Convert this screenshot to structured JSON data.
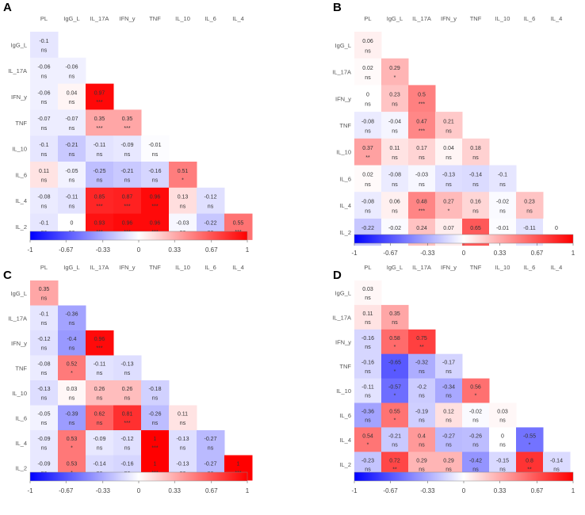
{
  "figure": {
    "color_scale": {
      "min": -1,
      "max": 1,
      "low_color": "#0000ff",
      "mid_color": "#ffffff",
      "high_color": "#ff0000"
    },
    "colorbar_ticks": [
      "-1",
      "-0.67",
      "-0.33",
      "0",
      "0.33",
      "0.67",
      "1"
    ]
  },
  "chart_data": [
    {
      "type": "heatmap",
      "panel_label": "A",
      "variables": [
        "PL",
        "IgG_L",
        "IL_17A",
        "IFN_y",
        "TNF",
        "IL_10",
        "IL_6",
        "IL_4",
        "IL_2"
      ],
      "values": [
        [
          "-0.1"
        ],
        [
          "-0.06",
          "-0.06"
        ],
        [
          "-0.06",
          "0.04",
          "0.97"
        ],
        [
          "-0.07",
          "-0.07",
          "0.35",
          "0.35"
        ],
        [
          "-0.1",
          "-0.21",
          "-0.11",
          "-0.09",
          "-0.01"
        ],
        [
          "0.11",
          "-0.05",
          "-0.25",
          "-0.21",
          "-0.16",
          "0.51"
        ],
        [
          "-0.08",
          "-0.11",
          "0.85",
          "0.87",
          "0.96",
          "0.13",
          "-0.12"
        ],
        [
          "-0.1",
          "0",
          "0.93",
          "0.96",
          "0.96",
          "-0.03",
          "-0.22",
          "0.55"
        ]
      ],
      "significance": [
        [
          "ns"
        ],
        [
          "ns",
          "ns"
        ],
        [
          "ns",
          "ns",
          "***"
        ],
        [
          "ns",
          "ns",
          "***",
          "***"
        ],
        [
          "ns",
          "ns",
          "ns",
          "ns",
          "ns"
        ],
        [
          "ns",
          "ns",
          "ns",
          "ns",
          "ns",
          "*"
        ],
        [
          "ns",
          "ns",
          "***",
          "***",
          "***",
          "ns",
          "ns"
        ],
        [
          "ns",
          "ns",
          "***",
          "***",
          "***",
          "ns",
          "ns",
          "***"
        ]
      ],
      "colorbar_ticks": [
        "-1",
        "-0.67",
        "-0.33",
        "0",
        "0.33",
        "0.67",
        "1"
      ]
    },
    {
      "type": "heatmap",
      "panel_label": "B",
      "variables": [
        "PL",
        "IgG_L",
        "IL_17A",
        "IFN_y",
        "TNF",
        "IL_10",
        "IL_6",
        "IL_4",
        "IL_2"
      ],
      "values": [
        [
          "0.06"
        ],
        [
          "0.02",
          "0.29"
        ],
        [
          "0",
          "0.23",
          "0.5"
        ],
        [
          "-0.08",
          "-0.04",
          "0.47",
          "0.21"
        ],
        [
          "0.37",
          "0.11",
          "0.17",
          "0.04",
          "0.18"
        ],
        [
          "0.02",
          "-0.08",
          "-0.03",
          "-0.13",
          "-0.14",
          "-0.1"
        ],
        [
          "-0.08",
          "0.06",
          "0.48",
          "0.27",
          "0.16",
          "-0.02",
          "0.23"
        ],
        [
          "-0.22",
          "-0.02",
          "0.24",
          "0.07",
          "0.65",
          "-0.01",
          "-0.11",
          "0"
        ]
      ],
      "significance": [
        [
          "ns"
        ],
        [
          "ns",
          "*"
        ],
        [
          "ns",
          "ns",
          "***"
        ],
        [
          "ns",
          "ns",
          "***",
          "ns"
        ],
        [
          "**",
          "ns",
          "ns",
          "ns",
          "ns"
        ],
        [
          "ns",
          "ns",
          "ns",
          "ns",
          "ns",
          "ns"
        ],
        [
          "ns",
          "ns",
          "***",
          "*",
          "ns",
          "ns",
          "ns"
        ],
        [
          "ns",
          "ns",
          "*",
          "ns",
          "***",
          "ns",
          "ns",
          "ns"
        ]
      ],
      "colorbar_ticks": [
        "-1",
        "-0.67",
        "-0.33",
        "0",
        "0.33",
        "0.67",
        "1"
      ]
    },
    {
      "type": "heatmap",
      "panel_label": "C",
      "variables": [
        "PL",
        "IgG_L",
        "IL_17A",
        "IFN_y",
        "TNF",
        "IL_10",
        "IL_6",
        "IL_4",
        "IL_2"
      ],
      "values": [
        [
          "0.35"
        ],
        [
          "-0.1",
          "-0.36"
        ],
        [
          "-0.12",
          "-0.4",
          "0.96"
        ],
        [
          "-0.08",
          "0.52",
          "-0.11",
          "-0.13"
        ],
        [
          "-0.13",
          "0.03",
          "0.26",
          "0.26",
          "-0.18"
        ],
        [
          "-0.05",
          "-0.39",
          "0.62",
          "0.81",
          "-0.26",
          "0.11"
        ],
        [
          "-0.09",
          "0.53",
          "-0.09",
          "-0.12",
          "1",
          "-0.13",
          "-0.27"
        ],
        [
          "-0.09",
          "0.53",
          "-0.14",
          "-0.16",
          "1",
          "-0.13",
          "-0.27",
          "1"
        ]
      ],
      "significance": [
        [
          "ns"
        ],
        [
          "ns",
          "ns"
        ],
        [
          "ns",
          "ns",
          "***"
        ],
        [
          "ns",
          "*",
          "ns",
          "ns"
        ],
        [
          "ns",
          "ns",
          "ns",
          "ns",
          "ns"
        ],
        [
          "ns",
          "ns",
          "ns",
          "***",
          "ns",
          "ns"
        ],
        [
          "ns",
          "*",
          "ns",
          "ns",
          "***",
          "ns",
          "ns"
        ],
        [
          "ns",
          "*",
          "ns",
          "ns",
          "***",
          "ns",
          "ns",
          "***"
        ]
      ],
      "colorbar_ticks": [
        "-1",
        "-0.67",
        "-0.33",
        "0",
        "0.33",
        "0.67",
        "1"
      ]
    },
    {
      "type": "heatmap",
      "panel_label": "D",
      "variables": [
        "PL",
        "IgG_L",
        "IL_17A",
        "IFN_y",
        "TNF",
        "IL_10",
        "IL_6",
        "IL_4",
        "IL_2"
      ],
      "values": [
        [
          "0.03"
        ],
        [
          "0.11",
          "0.35"
        ],
        [
          "-0.16",
          "0.58",
          "0.75"
        ],
        [
          "-0.16",
          "-0.65",
          "-0.32",
          "-0.17"
        ],
        [
          "-0.11",
          "-0.57",
          "-0.2",
          "-0.34",
          "0.56"
        ],
        [
          "-0.36",
          "0.55",
          "-0.19",
          "0.12",
          "-0.02",
          "0.03"
        ],
        [
          "0.54",
          "-0.21",
          "0.4",
          "-0.27",
          "-0.26",
          "0",
          "-0.55"
        ],
        [
          "-0.23",
          "0.72",
          "0.29",
          "0.29",
          "-0.42",
          "-0.15",
          "0.8",
          "-0.14"
        ]
      ],
      "significance": [
        [
          "ns"
        ],
        [
          "ns",
          "ns"
        ],
        [
          "ns",
          "*",
          "**"
        ],
        [
          "ns",
          "*",
          "ns",
          "ns"
        ],
        [
          "ns",
          "*",
          "ns",
          "ns",
          "*"
        ],
        [
          "ns",
          "*",
          "ns",
          "ns",
          "ns",
          "ns"
        ],
        [
          "*",
          "ns",
          "ns",
          "ns",
          "ns",
          "ns",
          "*"
        ],
        [
          "ns",
          "**",
          "ns",
          "ns",
          "ns",
          "ns",
          "**",
          "ns"
        ]
      ],
      "colorbar_ticks": [
        "-1",
        "-0.67",
        "-0.33",
        "0",
        "0.33",
        "0.67",
        "1"
      ]
    }
  ]
}
